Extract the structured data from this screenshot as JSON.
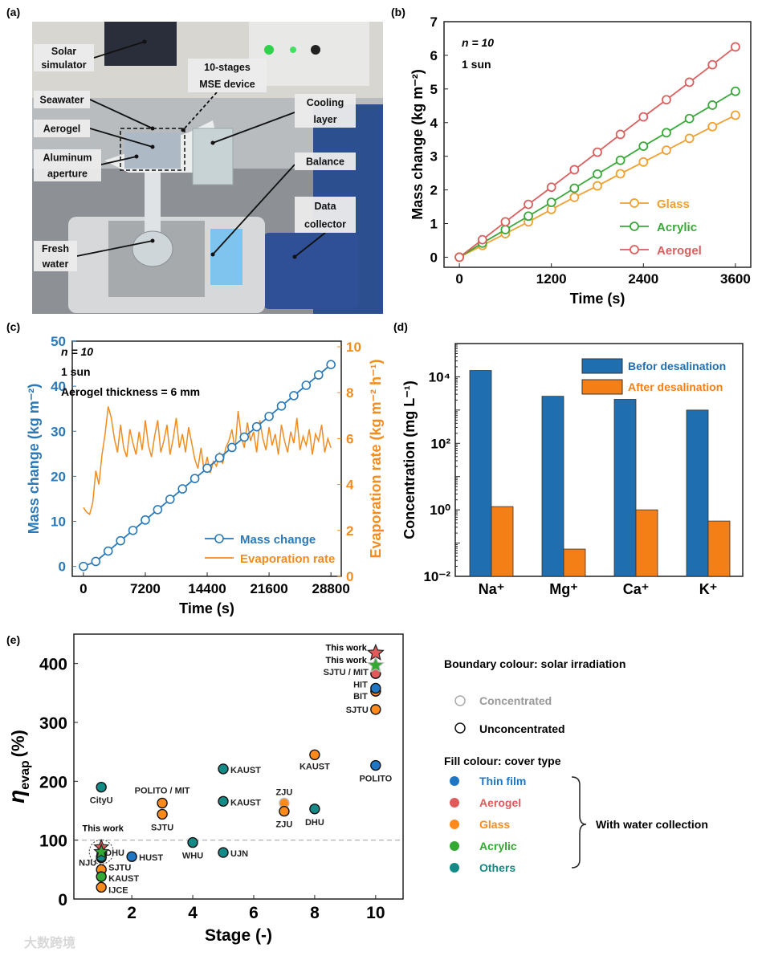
{
  "panel_labels": {
    "a": "(a)",
    "b": "(b)",
    "c": "(c)",
    "d": "(d)",
    "e": "(e)"
  },
  "photo": {
    "labels": {
      "solar_1": "Solar",
      "solar_2": "simulator",
      "mse_1": "10-stages",
      "mse_2": "MSE device",
      "seawater": "Seawater",
      "cooling_1": "Cooling",
      "cooling_2": "layer",
      "aerogel": "Aerogel",
      "aperture_1": "Aluminum",
      "aperture_2": "aperture",
      "balance": "Balance",
      "collector_1": "Data",
      "collector_2": "collector",
      "fresh_1": "Fresh",
      "fresh_2": "water"
    },
    "watermark": "大数跨境"
  },
  "chart_data": [
    {
      "id": "b",
      "type": "line",
      "xlabel": "Time (s)",
      "ylabel": "Mass change (kg m⁻²)",
      "xlim": [
        -200,
        3800
      ],
      "ylim": [
        -0.3,
        7
      ],
      "xticks": [
        0,
        1200,
        2400,
        3600
      ],
      "xtick_labels": [
        "0",
        "1200",
        "2400",
        "3600"
      ],
      "yticks": [
        0,
        1,
        2,
        3,
        4,
        5,
        6,
        7
      ],
      "ytick_labels": [
        "0",
        "1",
        "2",
        "3",
        "4",
        "5",
        "6",
        "7"
      ],
      "annotations": [
        "n = 10",
        "1 sun"
      ],
      "legend_position": "bottom-right",
      "x": [
        0,
        300,
        600,
        900,
        1200,
        1500,
        1800,
        2100,
        2400,
        2700,
        3000,
        3300,
        3600
      ],
      "series": [
        {
          "name": "Glass",
          "color": "#f0a030",
          "values": [
            0,
            0.35,
            0.7,
            1.05,
            1.42,
            1.78,
            2.12,
            2.48,
            2.83,
            3.18,
            3.53,
            3.88,
            4.22
          ]
        },
        {
          "name": "Acrylic",
          "color": "#3aa83a",
          "values": [
            0,
            0.42,
            0.82,
            1.22,
            1.63,
            2.05,
            2.47,
            2.88,
            3.3,
            3.7,
            4.12,
            4.52,
            4.93
          ]
        },
        {
          "name": "Aerogel",
          "color": "#d9605e",
          "values": [
            0,
            0.52,
            1.05,
            1.57,
            2.08,
            2.6,
            3.12,
            3.65,
            4.17,
            4.68,
            5.2,
            5.72,
            6.25
          ]
        }
      ]
    },
    {
      "id": "c",
      "type": "line",
      "xlabel": "Time (s)",
      "ylabel": "Mass change (kg m⁻²)",
      "ylabel_right": "Evaporation rate (kg m⁻² h⁻¹)",
      "xlim": [
        -1300,
        30000
      ],
      "ylim": [
        -2.2,
        50
      ],
      "ylim_right": [
        0,
        10
      ],
      "xticks": [
        0,
        7200,
        14400,
        21600,
        28800
      ],
      "xtick_labels": [
        "0",
        "7200",
        "14400",
        "21600",
        "28800"
      ],
      "yticks": [
        0,
        10,
        20,
        30,
        40,
        50
      ],
      "ytick_labels": [
        "0",
        "10",
        "20",
        "30",
        "40",
        "50"
      ],
      "yticks_right": [
        0,
        2,
        4,
        6,
        8,
        10
      ],
      "ytick_labels_right": [
        "0",
        "2",
        "4",
        "6",
        "8",
        "10"
      ],
      "annotations": [
        "n = 10",
        "1 sun",
        "Aerogel thickness = 6 mm"
      ],
      "legend_position": "bottom-right",
      "series": [
        {
          "name": "Mass change",
          "color": "#2a7ab9",
          "axis": "left",
          "x_step": 1440,
          "values": [
            0,
            1.1,
            3.4,
            5.7,
            8,
            10.3,
            12.6,
            14.9,
            17.2,
            19.5,
            21.8,
            24.1,
            26.4,
            28.7,
            31,
            33.3,
            35.6,
            37.9,
            40.2,
            42.5,
            44.8
          ]
        },
        {
          "name": "Evaporation rate",
          "color": "#f28c1e",
          "axis": "right",
          "x_step": 360,
          "values": [
            3.0,
            2.8,
            2.7,
            3.2,
            4.6,
            4.0,
            5.3,
            6.2,
            7.4,
            6.9,
            6.0,
            5.4,
            6.6,
            5.6,
            5.2,
            6.4,
            5.8,
            5.3,
            6.3,
            5.5,
            6.8,
            5.7,
            5.2,
            6.1,
            6.8,
            5.4,
            5.9,
            6.6,
            5.3,
            6.0,
            6.9,
            5.6,
            6.2,
            5.4,
            6.5,
            5.8,
            5.1,
            4.7,
            5.6,
            4.6,
            5.2,
            4.5,
            5.0,
            4.8,
            5.4,
            4.9,
            5.6,
            5.9,
            6.4,
            5.5,
            7.2,
            6.1,
            5.6,
            6.7,
            5.9,
            6.3,
            5.4,
            6.8,
            6.0,
            5.5,
            6.5,
            5.7,
            6.2,
            5.3,
            6.6,
            5.9,
            5.4,
            6.3,
            5.8,
            6.9,
            5.5,
            6.1,
            5.7,
            6.4,
            5.3,
            6.2,
            5.9,
            6.6,
            5.4,
            6.0,
            5.6
          ]
        }
      ]
    },
    {
      "id": "d",
      "type": "bar",
      "yscale": "log",
      "ylabel": "Concentration (mg L⁻¹)",
      "ylim": [
        0.01,
        100000
      ],
      "yticks": [
        0.01,
        1,
        100,
        10000
      ],
      "ytick_labels": [
        "10⁻²",
        "10⁰",
        "10²",
        "10⁴"
      ],
      "categories": [
        "Na⁺",
        "Mg⁺",
        "Ca⁺",
        "K⁺"
      ],
      "legend_position": "top-right",
      "series": [
        {
          "name": "Befor desalination",
          "color": "#1f6fb0",
          "values": [
            15500,
            2600,
            2100,
            1000
          ]
        },
        {
          "name": "After desalination",
          "color": "#f57f17",
          "values": [
            1.25,
            0.066,
            1.0,
            0.46
          ]
        }
      ]
    },
    {
      "id": "e",
      "type": "scatter",
      "xlabel": "Stage (-)",
      "ylabel_main": "η",
      "ylabel_sub": "evap",
      "ylabel_unit": "(%)",
      "xlim": [
        0.1,
        10.9
      ],
      "ylim": [
        0,
        450
      ],
      "xticks": [
        2,
        4,
        6,
        8,
        10
      ],
      "xtick_labels": [
        "2",
        "4",
        "6",
        "8",
        "10"
      ],
      "yticks": [
        0,
        100,
        200,
        300,
        400
      ],
      "ytick_labels": [
        "0",
        "100",
        "200",
        "300",
        "400"
      ],
      "reference_line": 100,
      "cover_colors": {
        "Thin film": "#1f77c4",
        "Aerogel": "#e05a5a",
        "Glass": "#ff8a1c",
        "Acrylic": "#33a833",
        "Others": "#138a85"
      },
      "points": [
        {
          "stage": 1,
          "value": 190,
          "cover": "Others",
          "label": "CityU"
        },
        {
          "stage": 1,
          "value": 70,
          "cover": "Thin film",
          "label": "NJU"
        },
        {
          "stage": 1,
          "value": 72,
          "cover": "Others",
          "label": "DHU"
        },
        {
          "stage": 1,
          "value": 50,
          "cover": "Glass",
          "label": "SJTU"
        },
        {
          "stage": 1,
          "value": 38,
          "cover": "Acrylic",
          "label": "KAUST"
        },
        {
          "stage": 1,
          "value": 20,
          "cover": "Glass",
          "label": "IJCE"
        },
        {
          "stage": 2,
          "value": 72,
          "cover": "Thin film",
          "label": "HUST"
        },
        {
          "stage": 3,
          "value": 163,
          "cover": "Glass",
          "label": "POLITO / MIT"
        },
        {
          "stage": 3,
          "value": 144,
          "cover": "Glass",
          "label": "SJTU"
        },
        {
          "stage": 4,
          "value": 96,
          "cover": "Others",
          "label": "WHU"
        },
        {
          "stage": 5,
          "value": 221,
          "cover": "Others",
          "label": "KAUST"
        },
        {
          "stage": 5,
          "value": 166,
          "cover": "Others",
          "label": "KAUST"
        },
        {
          "stage": 5,
          "value": 79,
          "cover": "Others",
          "label": "UJN"
        },
        {
          "stage": 7,
          "value": 163,
          "cover": "Glass",
          "label": "ZJU",
          "concentrated": true
        },
        {
          "stage": 7,
          "value": 149,
          "cover": "Glass",
          "label": "ZJU"
        },
        {
          "stage": 8,
          "value": 245,
          "cover": "Glass",
          "label": "KAUST"
        },
        {
          "stage": 8,
          "value": 153,
          "cover": "Others",
          "label": "DHU"
        },
        {
          "stage": 10,
          "value": 383,
          "cover": "Aerogel",
          "label": "SJTU / MIT"
        },
        {
          "stage": 10,
          "value": 353,
          "cover": "Glass",
          "label": "BIT"
        },
        {
          "stage": 10,
          "value": 358,
          "cover": "Thin film",
          "label": "HIT"
        },
        {
          "stage": 10,
          "value": 322,
          "cover": "Glass",
          "label": "SJTU"
        },
        {
          "stage": 10,
          "value": 227,
          "cover": "Thin film",
          "label": "POLITO"
        }
      ],
      "this_work": [
        {
          "stage": 1,
          "value": 88,
          "cover": "Aerogel",
          "label": "This work"
        },
        {
          "stage": 1,
          "value": 80,
          "cover": "Acrylic",
          "label": ""
        },
        {
          "stage": 10,
          "value": 418,
          "cover": "Aerogel",
          "label": "This work"
        },
        {
          "stage": 10,
          "value": 397,
          "cover": "Acrylic",
          "label": "This work",
          "concentrated": true
        }
      ],
      "legend": {
        "boundary_title": "Boundary colour: solar irradiation",
        "concentrated": "Concentrated",
        "unconcentrated": "Unconcentrated",
        "fill_title": "Fill colour: cover type",
        "items": [
          "Thin film",
          "Aerogel",
          "Glass",
          "Acrylic",
          "Others"
        ],
        "bracket_label": "With water collection"
      }
    }
  ]
}
